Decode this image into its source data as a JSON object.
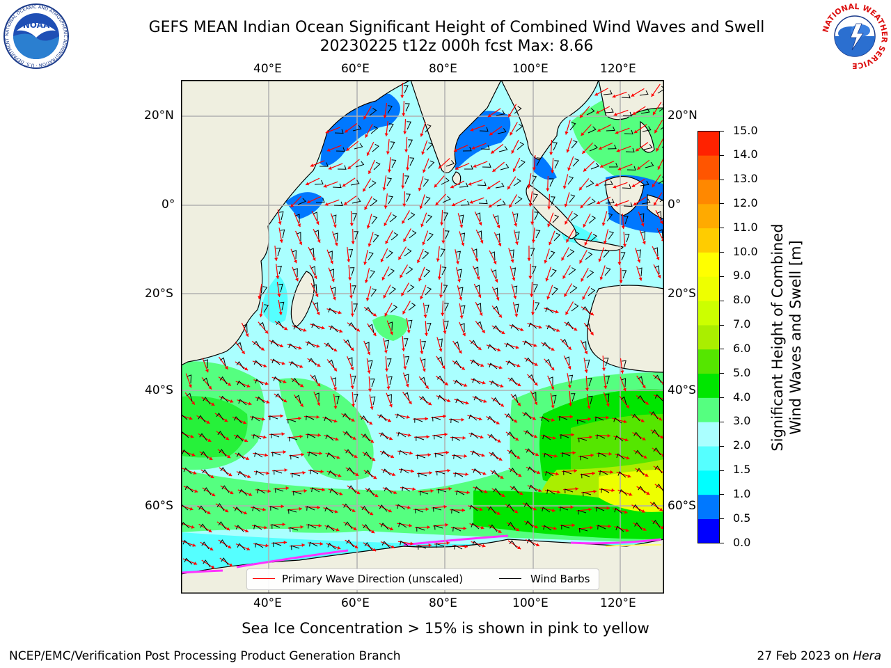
{
  "title": {
    "line1": "GEFS MEAN Indian Ocean Significant Height of Combined Wind Waves and Swell",
    "line2": "20230225 t12z 000h fcst   Max: 8.66"
  },
  "logos": {
    "left": "NOAA",
    "left_ring": "NATIONAL OCEANIC AND ATMOSPHERIC ADMINISTRATION · U.S. DEPARTMENT OF COMMERCE",
    "right_ring": "NATIONAL WEATHER SERVICE"
  },
  "map": {
    "lon_labels": [
      "40°E",
      "60°E",
      "80°E",
      "100°E",
      "120°E"
    ],
    "lat_labels_left": [
      "20°N",
      "0°",
      "20°S",
      "40°S",
      "60°S"
    ],
    "lat_labels_right": [
      "20°N",
      "0°",
      "20°S",
      "40°S",
      "60°S"
    ],
    "colors": {
      "land": "#efefe0",
      "ocean_base": "#aaffff",
      "grid": "#b0b0b0",
      "arrow": "#ff0000",
      "barb": "#000000"
    }
  },
  "legend": {
    "wave_label": "Primary Wave Direction (unscaled)",
    "wind_label": "Wind Barbs",
    "wave_color": "#ff0000",
    "wind_color": "#000000"
  },
  "colorbar": {
    "label_line1": "Significant Height of Combined",
    "label_line2": "Wind Waves and Swell [m]",
    "levels": [
      0.0,
      0.5,
      1.0,
      1.5,
      2.0,
      3.0,
      4.0,
      5.0,
      6.0,
      7.0,
      8.0,
      9.0,
      10.0,
      11.0,
      12.0,
      13.0,
      14.0,
      15.0
    ],
    "tick_labels": [
      "0.0",
      "0.5",
      "1.0",
      "1.5",
      "2.0",
      "3.0",
      "4.0",
      "5.0",
      "6.0",
      "7.0",
      "8.0",
      "9.0",
      "10.0",
      "11.0",
      "12.0",
      "13.0",
      "14.0",
      "15.0"
    ],
    "colors": [
      "#0000ff",
      "#0078ff",
      "#00ffff",
      "#55ffff",
      "#aaffff",
      "#55ff80",
      "#00e600",
      "#55e600",
      "#aaee00",
      "#ccff00",
      "#eeff00",
      "#ffff00",
      "#ffcc00",
      "#ffaa00",
      "#ff8800",
      "#ff5500",
      "#ff2200"
    ]
  },
  "caption": "Sea Ice Concentration > 15% is shown in pink to yellow",
  "footer": {
    "left": "NCEP/EMC/Verification Post Processing Product Generation Branch",
    "right_prefix": "27 Feb 2023 on ",
    "right_machine": "Hera"
  }
}
